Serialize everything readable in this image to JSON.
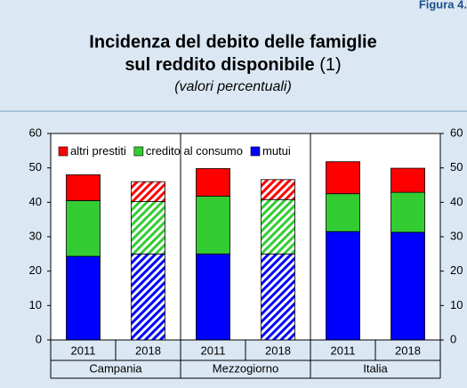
{
  "figure_label": "Figura 4.",
  "chart_data": {
    "type": "stacked_bar",
    "title_lines": [
      "Incidenza del debito delle famiglie",
      "sul reddito disponibile"
    ],
    "title_note": "(1)",
    "subtitle": "(valori percentuali)",
    "categories": [
      "2011",
      "2018",
      "2011",
      "2018",
      "2011",
      "2018"
    ],
    "groups": [
      "Campania",
      "Mezzogiorno",
      "Italia"
    ],
    "hatched": [
      false,
      true,
      false,
      true,
      false,
      false
    ],
    "series": [
      {
        "name": "altri prestiti",
        "color": "#ff0000",
        "values": [
          7.5,
          5.8,
          8,
          5.8,
          9.3,
          7
        ]
      },
      {
        "name": "credito al consumo",
        "color": "#33cc33",
        "values": [
          16.2,
          15.2,
          16.8,
          15.8,
          11,
          11.6
        ]
      },
      {
        "name": "mutui",
        "color": "#0000ff",
        "values": [
          24.3,
          25,
          25,
          25,
          31.5,
          31.3
        ]
      }
    ],
    "ylim": [
      0,
      60
    ],
    "yticks": [
      0,
      10,
      20,
      30,
      40,
      50,
      60
    ],
    "right_axis": true
  }
}
